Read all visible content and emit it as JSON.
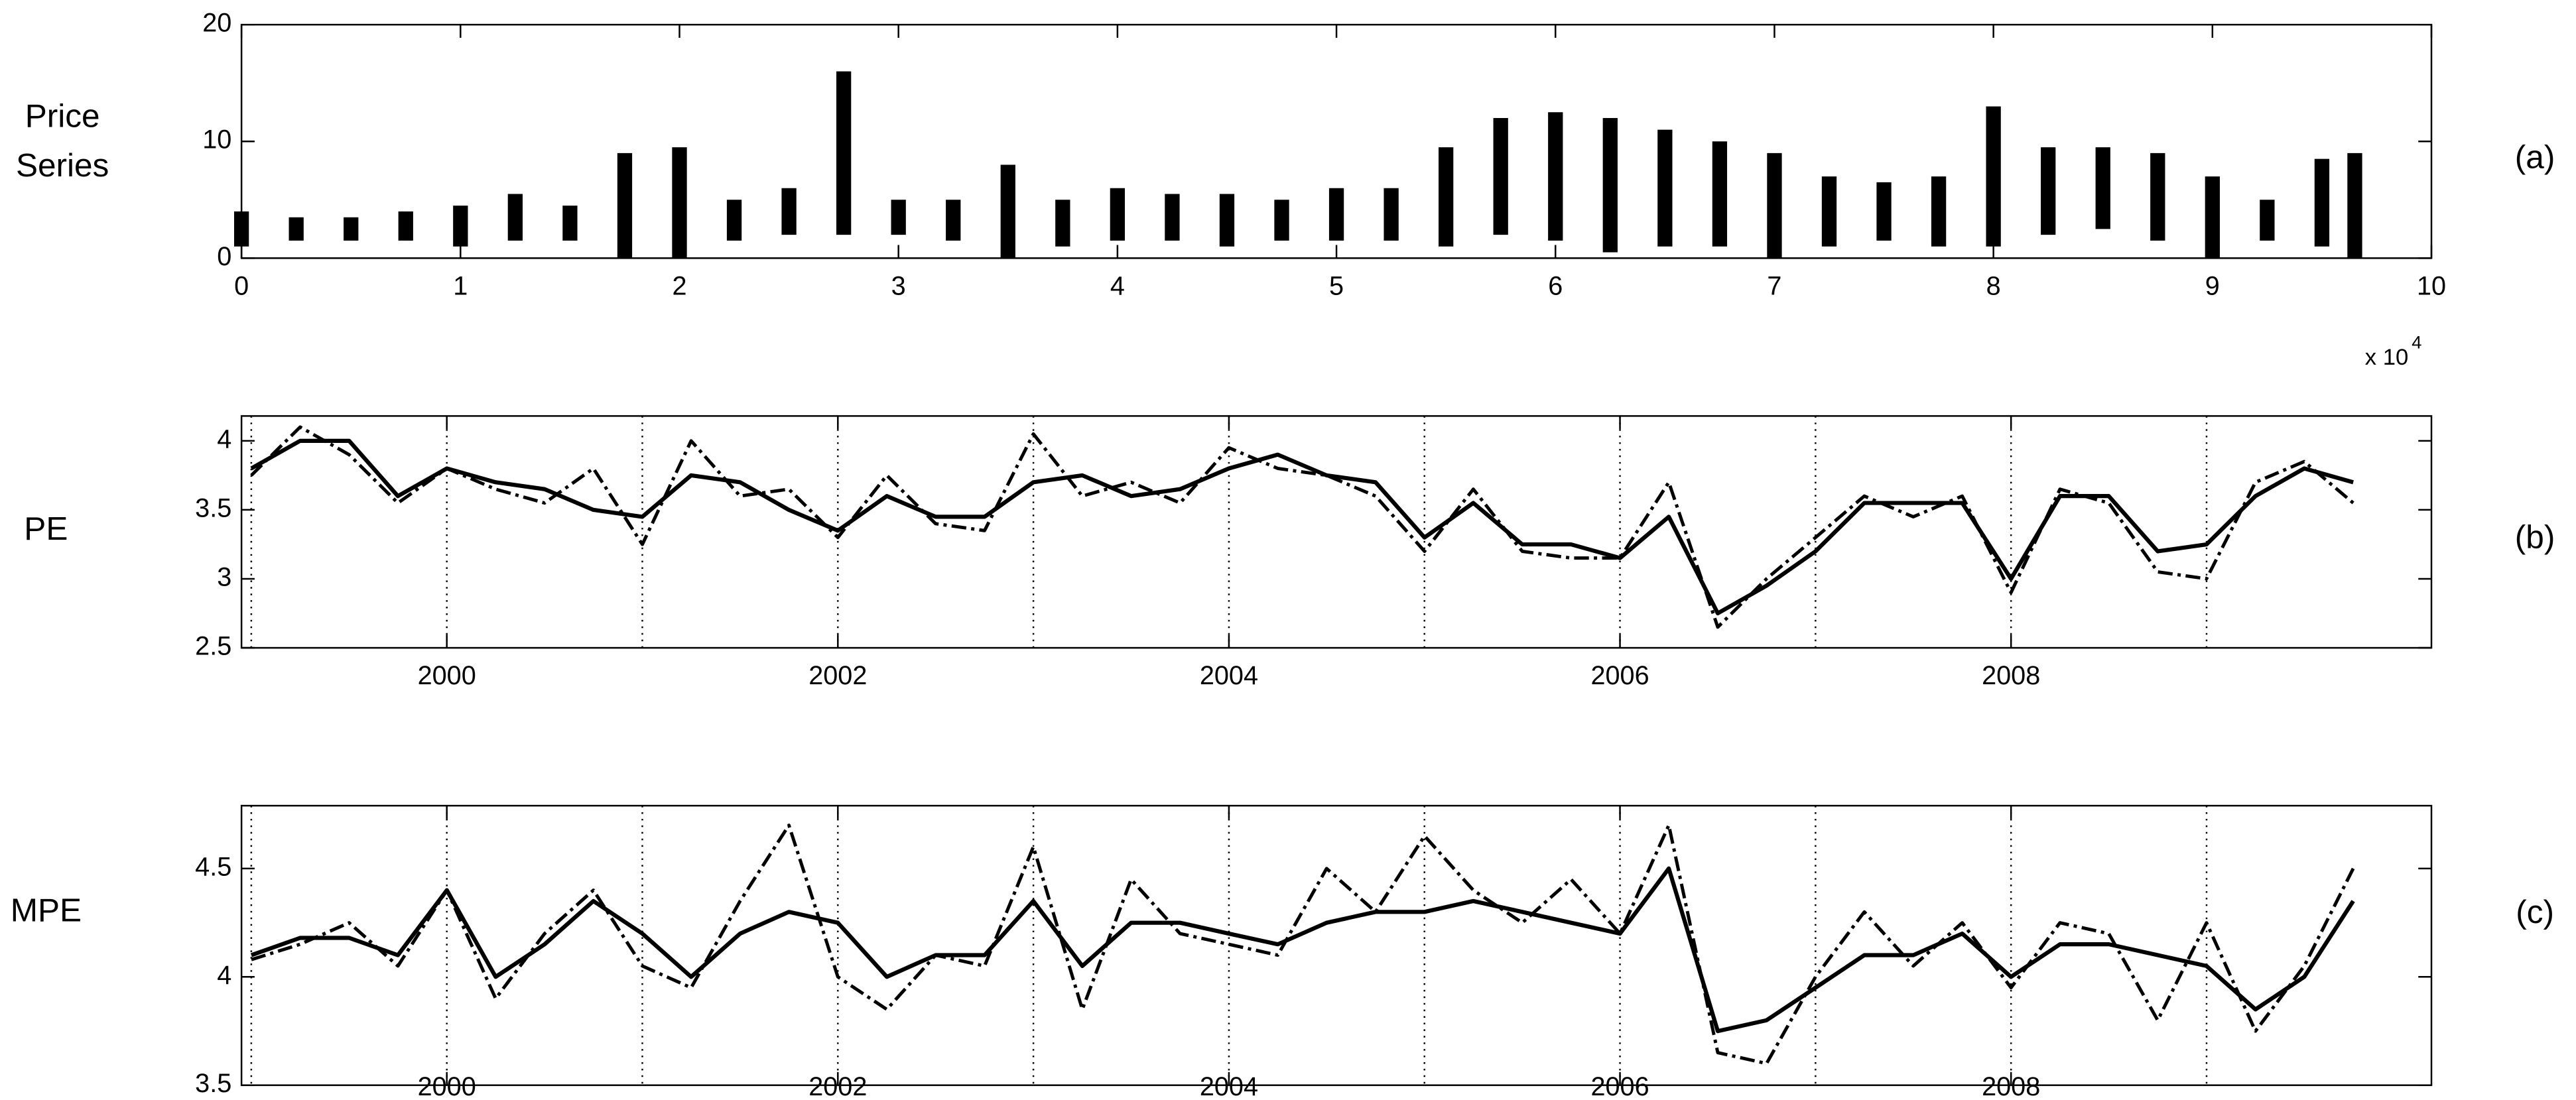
{
  "chart_data": [
    {
      "type": "range",
      "ylabel": "Price Series",
      "panel_label": "(a)",
      "x_multiplier": "x 10",
      "x_multiplier_exp": "4",
      "xlim": [
        0,
        10
      ],
      "xticks": [
        0,
        1,
        2,
        3,
        4,
        5,
        6,
        7,
        8,
        9,
        10
      ],
      "ylim": [
        0,
        20
      ],
      "yticks": [
        0,
        10,
        20
      ],
      "color": "#000000",
      "x": [
        0,
        0.25,
        0.5,
        0.75,
        1,
        1.25,
        1.5,
        1.75,
        2,
        2.25,
        2.5,
        2.75,
        3,
        3.25,
        3.5,
        3.75,
        4,
        4.25,
        4.5,
        4.75,
        5,
        5.25,
        5.5,
        5.75,
        6,
        6.25,
        6.5,
        6.75,
        7,
        7.25,
        7.5,
        7.75,
        8,
        8.25,
        8.5,
        8.75,
        9,
        9.25,
        9.5,
        9.65
      ],
      "high": [
        4,
        3.5,
        3.5,
        4,
        4.5,
        5.5,
        4.5,
        9,
        9.5,
        5,
        6,
        16,
        5,
        5,
        8,
        5,
        6,
        5.5,
        5.5,
        5,
        6,
        6,
        9.5,
        12,
        12.5,
        12,
        11,
        10,
        9,
        7,
        6.5,
        7,
        13,
        9.5,
        9.5,
        9,
        7,
        5,
        8.5,
        9
      ],
      "low": [
        1,
        1.5,
        1.5,
        1.5,
        1,
        1.5,
        1.5,
        0,
        0,
        1.5,
        2,
        2,
        2,
        1.5,
        0,
        1,
        1.5,
        1.5,
        1,
        1.5,
        1.5,
        1.5,
        1,
        2,
        1.5,
        0.5,
        1,
        1,
        0,
        1,
        1.5,
        1,
        1,
        2,
        2.5,
        1.5,
        0,
        1.5,
        1,
        0
      ]
    },
    {
      "type": "line",
      "ylabel": "PE",
      "panel_label": "(b)",
      "xlim": [
        1998.95,
        2010.15
      ],
      "xticks": [
        2000,
        2002,
        2004,
        2006,
        2008
      ],
      "ylim": [
        2.5,
        4.18
      ],
      "yticks": [
        2.5,
        3,
        3.5,
        4
      ],
      "xgrid_lines": [
        1999,
        2000,
        2001,
        2002,
        2003,
        2004,
        2005,
        2006,
        2007,
        2008,
        2009
      ],
      "x": [
        1999,
        1999.25,
        1999.5,
        1999.75,
        2000,
        2000.25,
        2000.5,
        2000.75,
        2001,
        2001.25,
        2001.5,
        2001.75,
        2002,
        2002.25,
        2002.5,
        2002.75,
        2003,
        2003.25,
        2003.5,
        2003.75,
        2004,
        2004.25,
        2004.5,
        2004.75,
        2005,
        2005.25,
        2005.5,
        2005.75,
        2006,
        2006.25,
        2006.5,
        2006.75,
        2007,
        2007.25,
        2007.5,
        2007.75,
        2008,
        2008.25,
        2008.5,
        2008.75,
        2009,
        2009.25,
        2009.5,
        2009.75
      ],
      "series": [
        {
          "color": "#000000",
          "dash": false,
          "values": [
            3.8,
            4.0,
            4.0,
            3.6,
            3.8,
            3.7,
            3.65,
            3.5,
            3.45,
            3.75,
            3.7,
            3.5,
            3.35,
            3.6,
            3.45,
            3.45,
            3.7,
            3.75,
            3.6,
            3.65,
            3.8,
            3.9,
            3.75,
            3.7,
            3.3,
            3.55,
            3.25,
            3.25,
            3.15,
            3.45,
            2.75,
            2.95,
            3.2,
            3.55,
            3.55,
            3.55,
            3.0,
            3.6,
            3.6,
            3.2,
            3.25,
            3.6,
            3.8,
            3.7
          ]
        },
        {
          "color": "#000000",
          "dash": true,
          "values": [
            3.75,
            4.1,
            3.9,
            3.55,
            3.8,
            3.65,
            3.55,
            3.8,
            3.25,
            4.0,
            3.6,
            3.65,
            3.3,
            3.75,
            3.4,
            3.35,
            4.05,
            3.6,
            3.7,
            3.55,
            3.95,
            3.8,
            3.75,
            3.6,
            3.2,
            3.65,
            3.2,
            3.15,
            3.15,
            3.7,
            2.65,
            3.0,
            3.3,
            3.6,
            3.45,
            3.6,
            2.9,
            3.65,
            3.55,
            3.05,
            3.0,
            3.7,
            3.85,
            3.55
          ]
        }
      ]
    },
    {
      "type": "line",
      "ylabel": "MPE",
      "panel_label": "(c)",
      "xlim": [
        1998.95,
        2010.15
      ],
      "xticks": [
        2000,
        2002,
        2004,
        2006,
        2008
      ],
      "ylim": [
        3.5,
        4.79
      ],
      "yticks": [
        3.5,
        4,
        4.5
      ],
      "xgrid_lines": [
        1999,
        2000,
        2001,
        2002,
        2003,
        2004,
        2005,
        2006,
        2007,
        2008,
        2009
      ],
      "x": [
        1999,
        1999.25,
        1999.5,
        1999.75,
        2000,
        2000.25,
        2000.5,
        2000.75,
        2001,
        2001.25,
        2001.5,
        2001.75,
        2002,
        2002.25,
        2002.5,
        2002.75,
        2003,
        2003.25,
        2003.5,
        2003.75,
        2004,
        2004.25,
        2004.5,
        2004.75,
        2005,
        2005.25,
        2005.5,
        2005.75,
        2006,
        2006.25,
        2006.5,
        2006.75,
        2007,
        2007.25,
        2007.5,
        2007.75,
        2008,
        2008.25,
        2008.5,
        2008.75,
        2009,
        2009.25,
        2009.5,
        2009.75
      ],
      "series": [
        {
          "color": "#000000",
          "dash": false,
          "values": [
            4.1,
            4.18,
            4.18,
            4.1,
            4.4,
            4.0,
            4.15,
            4.35,
            4.2,
            4.0,
            4.2,
            4.3,
            4.25,
            4.0,
            4.1,
            4.1,
            4.35,
            4.05,
            4.25,
            4.25,
            4.2,
            4.15,
            4.25,
            4.3,
            4.3,
            4.35,
            4.3,
            4.25,
            4.2,
            4.5,
            3.75,
            3.8,
            3.95,
            4.1,
            4.1,
            4.2,
            4.0,
            4.15,
            4.15,
            4.1,
            4.05,
            3.85,
            4.0,
            4.35
          ]
        },
        {
          "color": "#000000",
          "dash": true,
          "values": [
            4.08,
            4.15,
            4.25,
            4.05,
            4.4,
            3.9,
            4.2,
            4.4,
            4.05,
            3.95,
            4.35,
            4.7,
            4.0,
            3.85,
            4.1,
            4.05,
            4.6,
            3.85,
            4.45,
            4.2,
            4.15,
            4.1,
            4.5,
            4.3,
            4.65,
            4.4,
            4.25,
            4.45,
            4.2,
            4.7,
            3.65,
            3.6,
            4.0,
            4.3,
            4.05,
            4.25,
            3.95,
            4.25,
            4.2,
            3.8,
            4.25,
            3.75,
            4.05,
            4.5
          ]
        }
      ]
    }
  ]
}
